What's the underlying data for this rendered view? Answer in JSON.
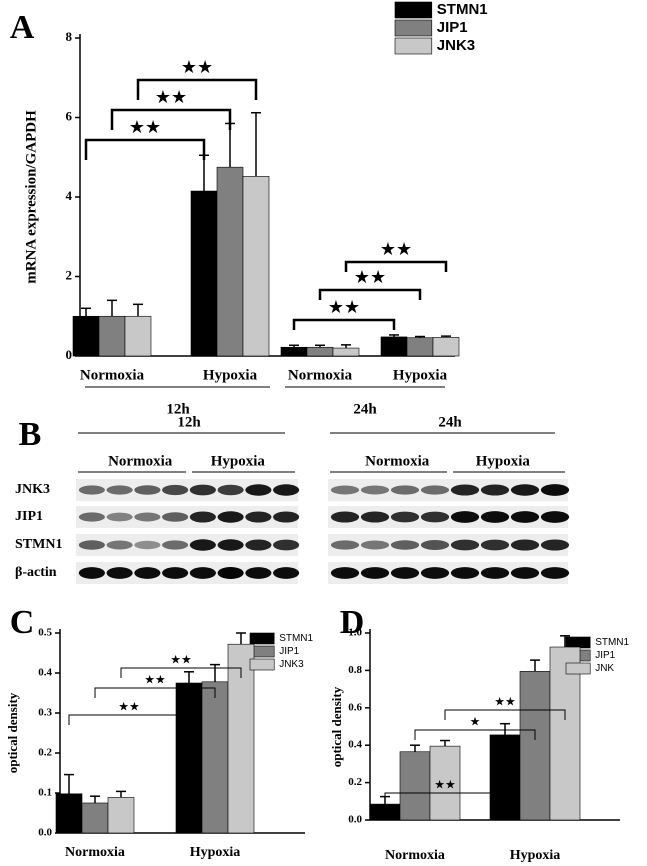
{
  "chart_data": [
    {
      "type": "bar",
      "label": "A",
      "ylabel": "mRNA expression/GAPDH",
      "categories": [
        "Normoxia",
        "Hypoxia",
        "Normoxia",
        "Hypoxia"
      ],
      "groups": [
        "12h",
        "24h"
      ],
      "series": [
        {
          "name": "STMN1",
          "color": "#000000",
          "values": [
            1.0,
            4.15,
            0.22,
            0.48
          ],
          "errors": [
            0.2,
            0.9,
            0.05,
            0.05
          ]
        },
        {
          "name": "JIP1",
          "color": "#808080",
          "values": [
            1.0,
            4.75,
            0.22,
            0.46
          ],
          "errors": [
            0.4,
            1.1,
            0.05,
            0.03
          ]
        },
        {
          "name": "JNK3",
          "color": "#c8c8c8",
          "values": [
            1.0,
            4.52,
            0.2,
            0.47
          ],
          "errors": [
            0.3,
            1.6,
            0.08,
            0.03
          ]
        }
      ],
      "ylim": [
        0,
        8
      ],
      "yticks": [
        0,
        2,
        4,
        6,
        8
      ],
      "annotations": [
        "★★",
        "★★",
        "★★",
        "★★",
        "★★",
        "★★"
      ]
    },
    {
      "type": "bar",
      "label": "C",
      "ylabel": "optical density",
      "categories": [
        "Normoxia",
        "Hypoxia"
      ],
      "series": [
        {
          "name": "STMN1",
          "color": "#000000",
          "values": [
            0.098,
            0.375
          ],
          "errors": [
            0.048,
            0.028
          ]
        },
        {
          "name": "JIP1",
          "color": "#808080",
          "values": [
            0.075,
            0.378
          ],
          "errors": [
            0.017,
            0.043
          ]
        },
        {
          "name": "JNK3",
          "color": "#c8c8c8",
          "values": [
            0.089,
            0.472
          ],
          "errors": [
            0.015,
            0.028
          ]
        }
      ],
      "ylim": [
        0,
        0.5
      ],
      "yticks": [
        {
          "value": 0,
          "label": "0.0"
        },
        0.1,
        0.2,
        0.3,
        0.4,
        0.5
      ],
      "annotations": [
        "★★",
        "★★",
        "★★"
      ]
    },
    {
      "type": "bar",
      "label": "D",
      "ylabel": "optical density",
      "categories": [
        "Normoxia",
        "Hypoxia"
      ],
      "series": [
        {
          "name": "STMN1",
          "color": "#000000",
          "values": [
            0.085,
            0.455
          ],
          "errors": [
            0.04,
            0.06
          ]
        },
        {
          "name": "JIP1",
          "color": "#808080",
          "values": [
            0.365,
            0.795
          ],
          "errors": [
            0.035,
            0.06
          ]
        },
        {
          "name": "JNK",
          "color": "#c8c8c8",
          "values": [
            0.395,
            0.925
          ],
          "errors": [
            0.03,
            0.06
          ]
        }
      ],
      "ylim": [
        0,
        1.0
      ],
      "yticks": [
        {
          "value": 0,
          "label": "0.0"
        },
        0.2,
        0.4,
        0.6,
        0.8,
        {
          "value": 1,
          "label": "1.0"
        }
      ],
      "annotations": [
        "★★",
        "★",
        "★★"
      ]
    }
  ],
  "blot": {
    "label": "B",
    "rows": [
      "JNK3",
      "JIP1",
      "STMN1",
      "β-actin"
    ],
    "panels": [
      {
        "time": "12h",
        "conditions": [
          "Normoxia",
          "Hypoxia"
        ]
      },
      {
        "time": "24h",
        "conditions": [
          "Normoxia",
          "Hypoxia"
        ]
      }
    ]
  }
}
